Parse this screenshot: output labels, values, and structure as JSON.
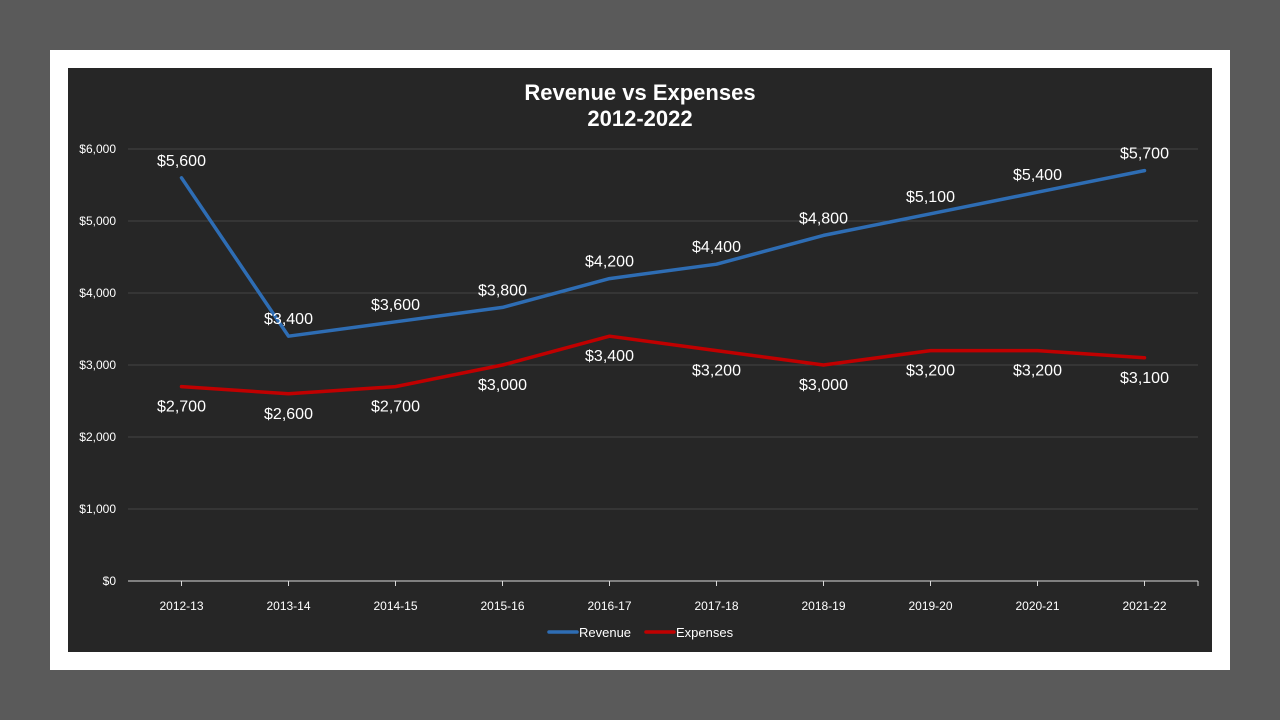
{
  "chart_data": {
    "type": "line",
    "title": "Revenue vs Expenses",
    "subtitle": "2012-2022",
    "categories": [
      "2012-13",
      "2013-14",
      "2014-15",
      "2015-16",
      "2016-17",
      "2017-18",
      "2018-19",
      "2019-20",
      "2020-21",
      "2021-22"
    ],
    "series": [
      {
        "name": "Revenue",
        "color": "#2e6db4",
        "values": [
          5600,
          3400,
          3600,
          3800,
          4200,
          4400,
          4800,
          5100,
          5400,
          5700
        ],
        "labels": [
          "$5,600",
          "$3,400",
          "$3,600",
          "$3,800",
          "$4,200",
          "$4,400",
          "$4,800",
          "$5,100",
          "$5,400",
          "$5,700"
        ]
      },
      {
        "name": "Expenses",
        "color": "#c00000",
        "values": [
          2700,
          2600,
          2700,
          3000,
          3400,
          3200,
          3000,
          3200,
          3200,
          3100
        ],
        "labels": [
          "$2,700",
          "$2,600",
          "$2,700",
          "$3,000",
          "$3,400",
          "$3,200",
          "$3,000",
          "$3,200",
          "$3,200",
          "$3,100"
        ]
      }
    ],
    "ylim": [
      0,
      6000
    ],
    "yticks": [
      {
        "value": 0,
        "label": "$0"
      },
      {
        "value": 1000,
        "label": "$1,000"
      },
      {
        "value": 2000,
        "label": "$2,000"
      },
      {
        "value": 3000,
        "label": "$3,000"
      },
      {
        "value": 4000,
        "label": "$4,000"
      },
      {
        "value": 5000,
        "label": "$5,000"
      },
      {
        "value": 6000,
        "label": "$6,000"
      }
    ],
    "grid": true,
    "legend": "bottom",
    "xlabel": "",
    "ylabel": ""
  }
}
